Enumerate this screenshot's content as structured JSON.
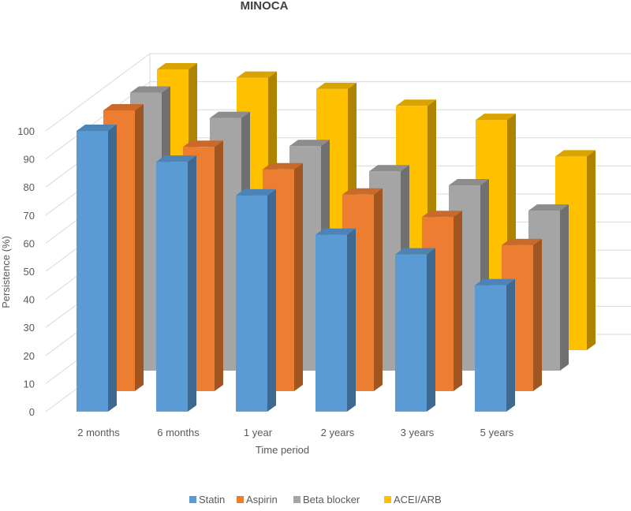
{
  "chart_data": {
    "type": "bar",
    "title": "MINOCA",
    "xlabel": "Time period",
    "ylabel": "Persistence (%)",
    "ylim": [
      0,
      100
    ],
    "yticks": [
      0,
      10,
      20,
      30,
      40,
      50,
      60,
      70,
      80,
      90,
      100
    ],
    "categories": [
      "2 months",
      "6 months",
      "1 year",
      "2 years",
      "3 years",
      "5 years"
    ],
    "series": [
      {
        "name": "Statin",
        "values": [
          100,
          89,
          77,
          63,
          56,
          45
        ],
        "color": "#5B9BD5"
      },
      {
        "name": "Aspirin",
        "values": [
          100,
          87,
          79,
          70,
          62,
          52
        ],
        "color": "#ED7D31"
      },
      {
        "name": "Beta blocker",
        "values": [
          99,
          90,
          80,
          71,
          66,
          57
        ],
        "color": "#A5A5A5"
      },
      {
        "name": "ACEI/ARB",
        "values": [
          100,
          97,
          93,
          87,
          82,
          69
        ],
        "color": "#FFC000"
      }
    ],
    "grid": true,
    "legend_position": "bottom",
    "style": "3d-column"
  }
}
